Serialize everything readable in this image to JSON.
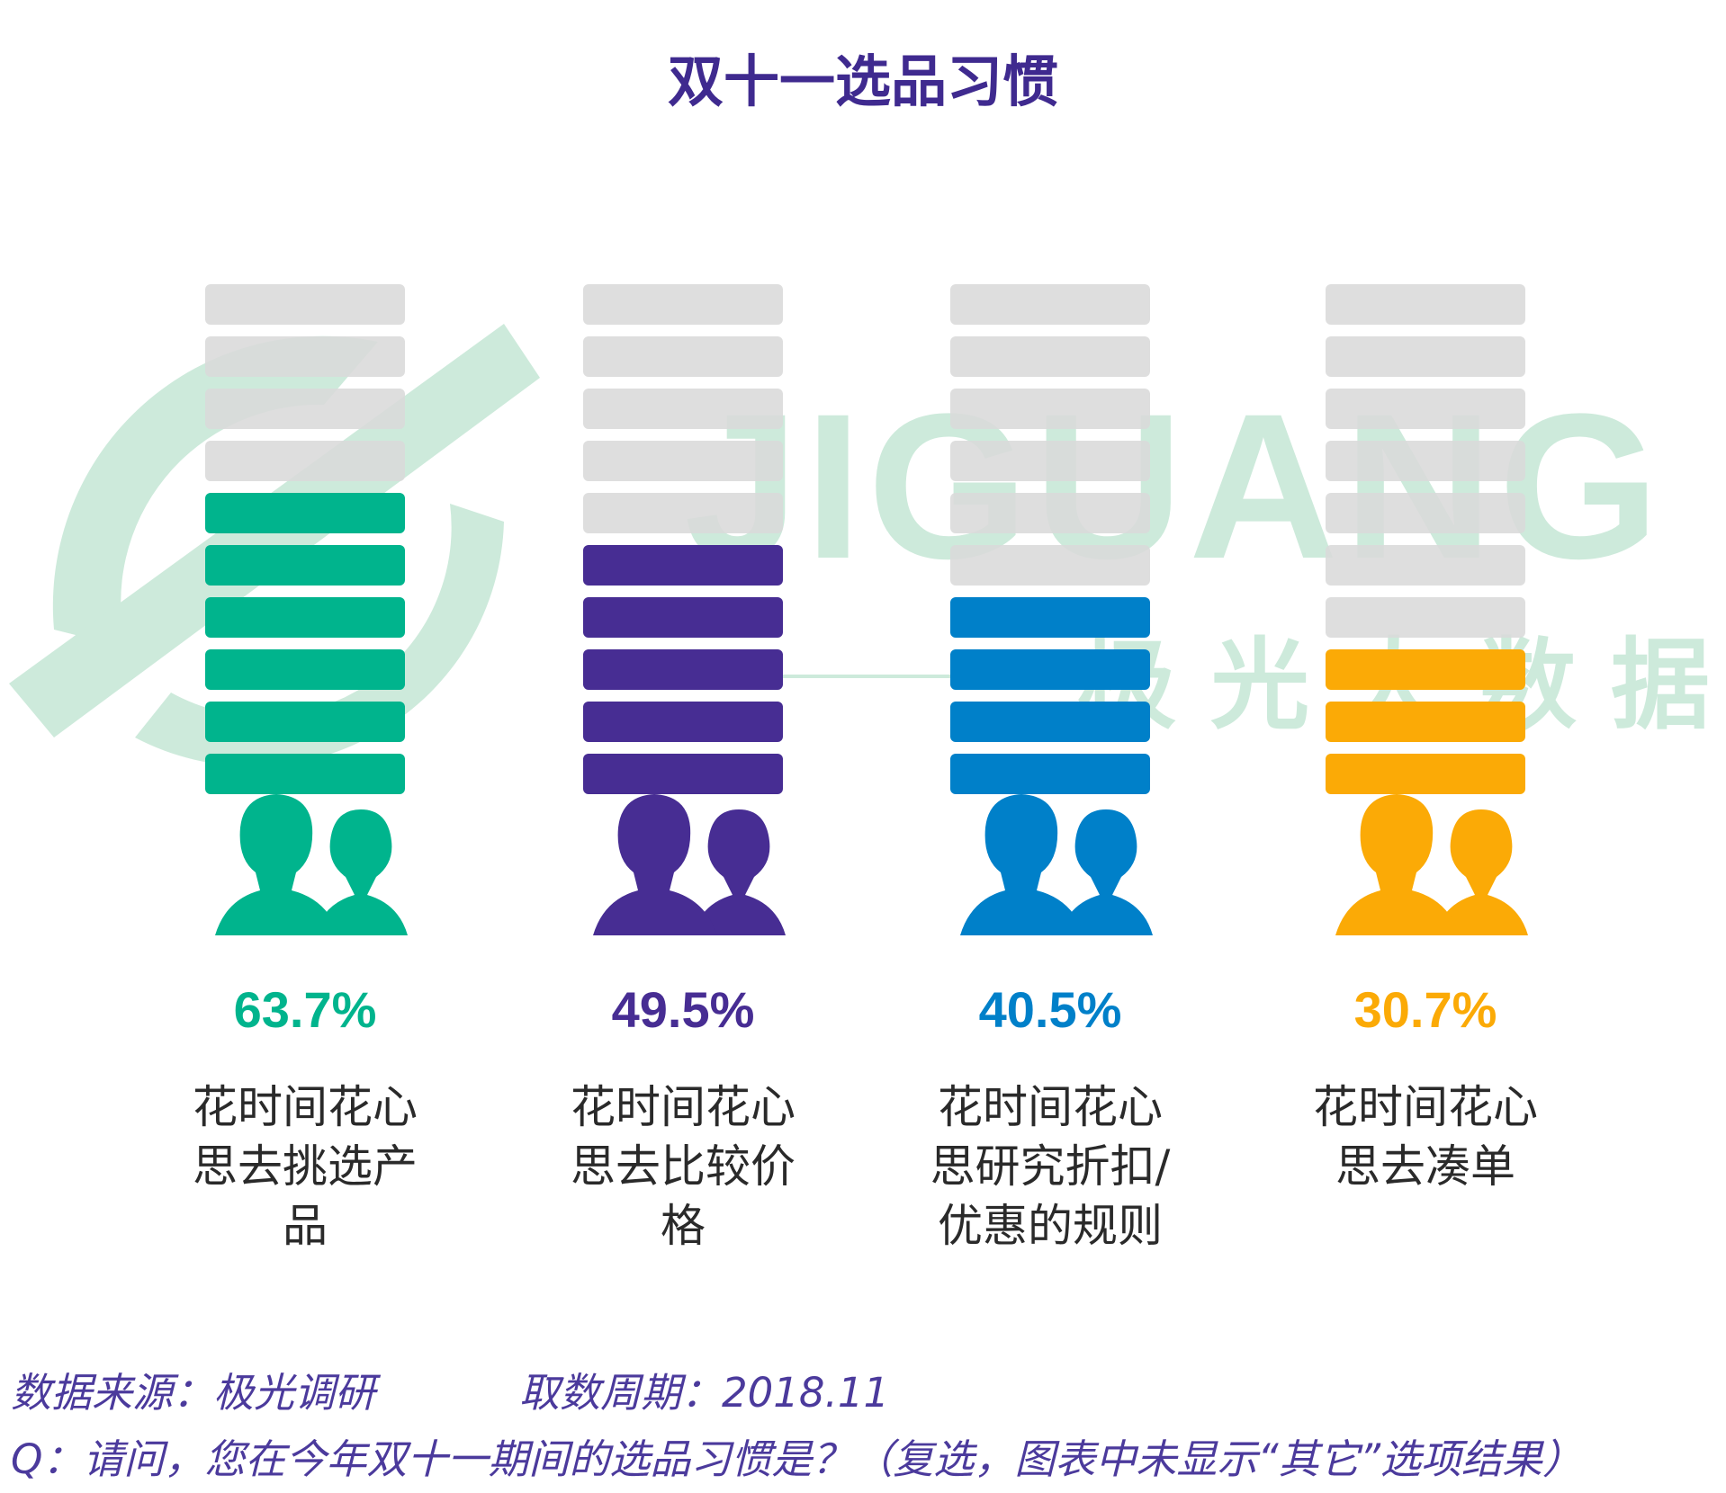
{
  "title": "双十一选品习惯",
  "chart_data": {
    "type": "bar",
    "title": "双十一选品习惯",
    "segments_per_bar": 10,
    "categories": [
      [
        "花时间花心",
        "思去挑选产",
        "品"
      ],
      [
        "花时间花心",
        "思去比较价",
        "格"
      ],
      [
        "花时间花心",
        "思研究折扣/",
        "优惠的规则"
      ],
      [
        "花时间花心",
        "思去凑单"
      ]
    ],
    "values": [
      63.7,
      49.5,
      40.5,
      30.7
    ],
    "value_labels": [
      "63.7%",
      "49.5%",
      "40.5%",
      "30.7%"
    ],
    "colors": [
      "#00b48d",
      "#472d93",
      "#0080c9",
      "#fbaa06"
    ],
    "background_color": "#d9d9d9",
    "icon": "people-icon"
  },
  "watermark": {
    "text": "JIGUANG",
    "subtext": "极 光 大 数 据",
    "color": "#cdeadb"
  },
  "footer": {
    "source": "数据来源：极光调研",
    "period": "取数周期：2018.11",
    "question": "Q：请问，您在今年双十一期间的选品习惯是？（复选，图表中未显示“其它”选项结果）"
  }
}
